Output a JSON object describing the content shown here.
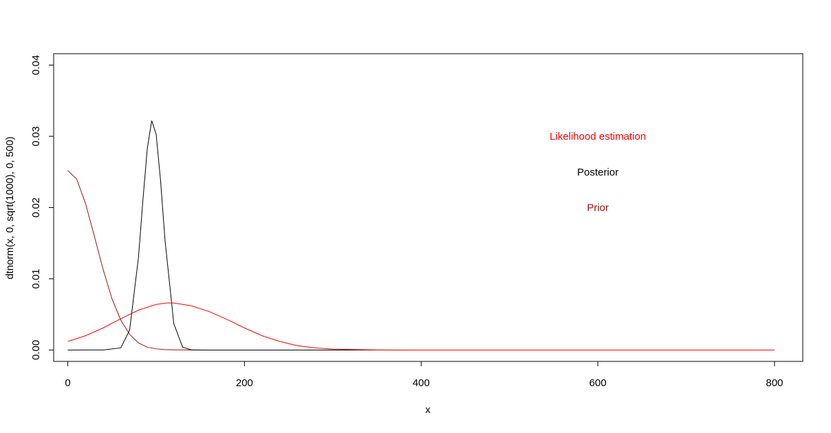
{
  "chart_data": {
    "type": "line",
    "xlabel": "x",
    "ylabel": "dtnorm(x, 0, sqrt(1000), 0, 500)",
    "xlim": [
      -16,
      832
    ],
    "ylim": [
      -0.0016,
      0.0416
    ],
    "x_ticks": [
      {
        "value": 0,
        "label": "0"
      },
      {
        "value": 200,
        "label": "200"
      },
      {
        "value": 400,
        "label": "400"
      },
      {
        "value": 600,
        "label": "600"
      },
      {
        "value": 800,
        "label": "800"
      }
    ],
    "y_ticks": [
      {
        "value": 0,
        "label": "0.00"
      },
      {
        "value": 0.01,
        "label": "0.01"
      },
      {
        "value": 0.02,
        "label": "0.02"
      },
      {
        "value": 0.03,
        "label": "0.03"
      },
      {
        "value": 0.04,
        "label": "0.04"
      }
    ],
    "grid": false,
    "legend": "none",
    "series": [
      {
        "name": "Prior",
        "color": "#a01010",
        "x": [
          0,
          10,
          20,
          30,
          40,
          50,
          60,
          70,
          80,
          90,
          100,
          110,
          120,
          140,
          160,
          200,
          300,
          400,
          500
        ],
        "y": [
          0.0252,
          0.024,
          0.0206,
          0.016,
          0.0113,
          0.0072,
          0.0042,
          0.0022,
          0.001,
          0.0004,
          0.00017,
          6e-05,
          2e-05,
          1e-06,
          0,
          0,
          0,
          0,
          0
        ]
      },
      {
        "name": "Posterior",
        "color": "#000000",
        "x": [
          0,
          40,
          60,
          70,
          80,
          85,
          90,
          95,
          100,
          105,
          110,
          120,
          130,
          140,
          150,
          200,
          300,
          400,
          500,
          600,
          700,
          800
        ],
        "y": [
          0,
          1e-06,
          0.0003,
          0.0028,
          0.013,
          0.021,
          0.0283,
          0.0322,
          0.0303,
          0.0238,
          0.0155,
          0.0037,
          0.0004,
          2e-05,
          0,
          0,
          0,
          0,
          0,
          0,
          0,
          0
        ]
      },
      {
        "name": "Likelihood estimation",
        "color": "#ff0000",
        "x": [
          0,
          20,
          40,
          60,
          80,
          100,
          112,
          120,
          140,
          160,
          180,
          200,
          220,
          240,
          260,
          280,
          300,
          350,
          400,
          500,
          600,
          700,
          800
        ],
        "y": [
          0.0012,
          0.002,
          0.0031,
          0.0044,
          0.0056,
          0.0064,
          0.0066,
          0.0066,
          0.0062,
          0.0054,
          0.0043,
          0.0031,
          0.002,
          0.0012,
          0.0006,
          0.0003,
          0.00013,
          1e-05,
          0,
          0,
          0,
          0,
          0
        ]
      }
    ],
    "annotations": [
      {
        "text": "Likelihood estimation",
        "x": 600,
        "y": 0.03,
        "color": "#ff0000"
      },
      {
        "text": "Posterior",
        "x": 600,
        "y": 0.025,
        "color": "#000000"
      },
      {
        "text": "Prior",
        "x": 600,
        "y": 0.02,
        "color": "#a01010"
      }
    ]
  }
}
